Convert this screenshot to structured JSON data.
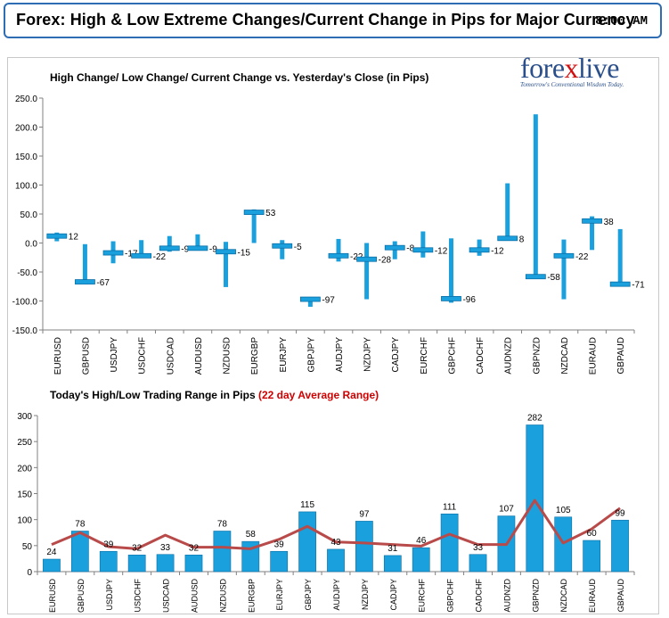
{
  "header": {
    "title": "Forex:  High & Low Extreme Changes/Current Change in Pips for Major Currency",
    "time": "8:00 AM"
  },
  "logo": {
    "text_prefix": "fore",
    "text_x": "x",
    "text_suffix": "live",
    "tagline": "Tomorrow's Conventional Wisdom Today."
  },
  "chart_titles": {
    "top": "High Change/ Low Change/ Current Change vs. Yesterday's Close (in Pips)",
    "bottom_main": "Today's High/Low Trading Range in Pips",
    "bottom_highlight": "(22 day Average Range)"
  },
  "colors": {
    "bar": "#1aa0dc",
    "bar_dark": "#0a6fa8",
    "average_line": "#b84a4a",
    "header_border": "#2e6db4",
    "highlight_text": "#d00000"
  },
  "chart_data": [
    {
      "type": "bar",
      "categories": [
        "EURUSD",
        "GBPUSD",
        "USDJPY",
        "USDCHF",
        "USDCAD",
        "AUDUSD",
        "NZDUSD",
        "EURGBP",
        "EURJPY",
        "GBPJPY",
        "AUDJPY",
        "NZDJPY",
        "CADJPY",
        "EURCHF",
        "GBPCHF",
        "CADCHF",
        "AUDNZD",
        "GBPNZD",
        "NZDCAD",
        "EURAUD",
        "GBPAUD"
      ],
      "series": [
        {
          "values": [
            18,
            -2,
            3,
            5,
            12,
            15,
            2,
            58,
            5,
            -110,
            7,
            0,
            3,
            20,
            8,
            6,
            103,
            222,
            6,
            46,
            24
          ]
        },
        {
          "values": [
            3,
            -67,
            -35,
            -25,
            -15,
            -12,
            -76,
            0,
            -28,
            -110,
            -32,
            -97,
            -28,
            -25,
            -103,
            -22,
            5,
            -58,
            -97,
            -12,
            -71
          ]
        },
        {
          "values": [
            12,
            -67,
            -17,
            -22,
            -9,
            -9,
            -15,
            53,
            -5,
            -97,
            -22,
            -28,
            -8,
            -12,
            -96,
            -12,
            8,
            -58,
            -22,
            38,
            -71
          ]
        }
      ],
      "labels": [
        "12",
        "-67",
        "-17",
        "-22",
        "-9",
        "-9",
        "-15",
        "53",
        "-5",
        "-97",
        "-22",
        "-28",
        "-8",
        "-12",
        "-96",
        "-12",
        "8",
        "-58",
        "-22",
        "38",
        "-71"
      ],
      "ylim": [
        -150,
        250
      ],
      "yticks": [
        "250.0",
        "200.0",
        "150.0",
        "100.0",
        "50.0",
        "0.0",
        "-50.0",
        "-100.0",
        "-150.0"
      ],
      "grid": false
    },
    {
      "type": "bar",
      "categories": [
        "EURUSD",
        "GBPUSD",
        "USDJPY",
        "USDCHF",
        "USDCAD",
        "AUDUSD",
        "NZDUSD",
        "EURGBP",
        "EURJPY",
        "GBPJPY",
        "AUDJPY",
        "NZDJPY",
        "CADJPY",
        "EURCHF",
        "GBPCHF",
        "CADCHF",
        "AUDNZD",
        "GBPNZD",
        "NZDCAD",
        "EURAUD",
        "GBPAUD"
      ],
      "series": [
        {
          "values": [
            24,
            78,
            39,
            32,
            33,
            32,
            78,
            58,
            39,
            115,
            43,
            97,
            31,
            46,
            111,
            33,
            107,
            282,
            105,
            60,
            99
          ]
        },
        {
          "type": "line",
          "values": [
            52,
            75,
            48,
            44,
            70,
            47,
            47,
            44,
            62,
            87,
            57,
            55,
            52,
            49,
            72,
            52,
            52,
            137,
            55,
            82,
            122
          ]
        }
      ],
      "labels": [
        "24",
        "78",
        "39",
        "32",
        "33",
        "32",
        "78",
        "58",
        "39",
        "115",
        "43",
        "97",
        "31",
        "46",
        "111",
        "33",
        "107",
        "282",
        "105",
        "60",
        "99"
      ],
      "ylim": [
        0,
        300
      ],
      "yticks": [
        "300",
        "250",
        "200",
        "150",
        "100",
        "50",
        "0"
      ],
      "grid": false
    }
  ]
}
